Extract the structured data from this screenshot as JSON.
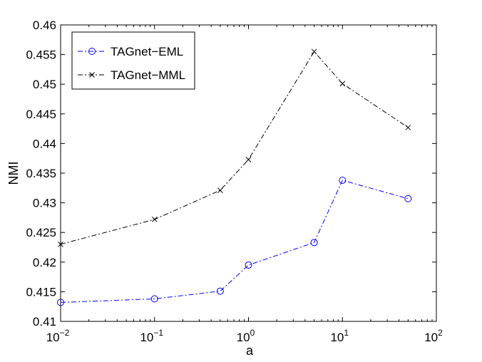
{
  "chart_data": {
    "type": "line",
    "title": "",
    "xlabel": "a",
    "ylabel": "NMI",
    "x_scale": "log",
    "xlim": [
      0.01,
      100
    ],
    "ylim": [
      0.41,
      0.46
    ],
    "x_ticks": [
      {
        "base": "10",
        "exp": "−2",
        "value": 0.01
      },
      {
        "base": "10",
        "exp": "−1",
        "value": 0.1
      },
      {
        "base": "10",
        "exp": "0",
        "value": 1
      },
      {
        "base": "10",
        "exp": "1",
        "value": 10
      },
      {
        "base": "10",
        "exp": "2",
        "value": 100
      }
    ],
    "y_ticks": [
      "0.41",
      "0.415",
      "0.42",
      "0.425",
      "0.43",
      "0.435",
      "0.44",
      "0.445",
      "0.45",
      "0.455",
      "0.46"
    ],
    "grid": false,
    "legend_position": "top-left",
    "x": [
      0.01,
      0.1,
      0.5,
      1,
      5,
      10,
      50
    ],
    "series": [
      {
        "name": "TAGnet−EML",
        "color": "#0000ff",
        "marker": "circle",
        "line_style": "dash-dot",
        "values": [
          0.4132,
          0.4138,
          0.4151,
          0.4195,
          0.4233,
          0.4338,
          0.4307
        ]
      },
      {
        "name": "TAGnet−MML",
        "color": "#000000",
        "marker": "x",
        "line_style": "dash-dot",
        "values": [
          0.423,
          0.4272,
          0.4321,
          0.4373,
          0.4555,
          0.4501,
          0.4427
        ]
      }
    ]
  }
}
